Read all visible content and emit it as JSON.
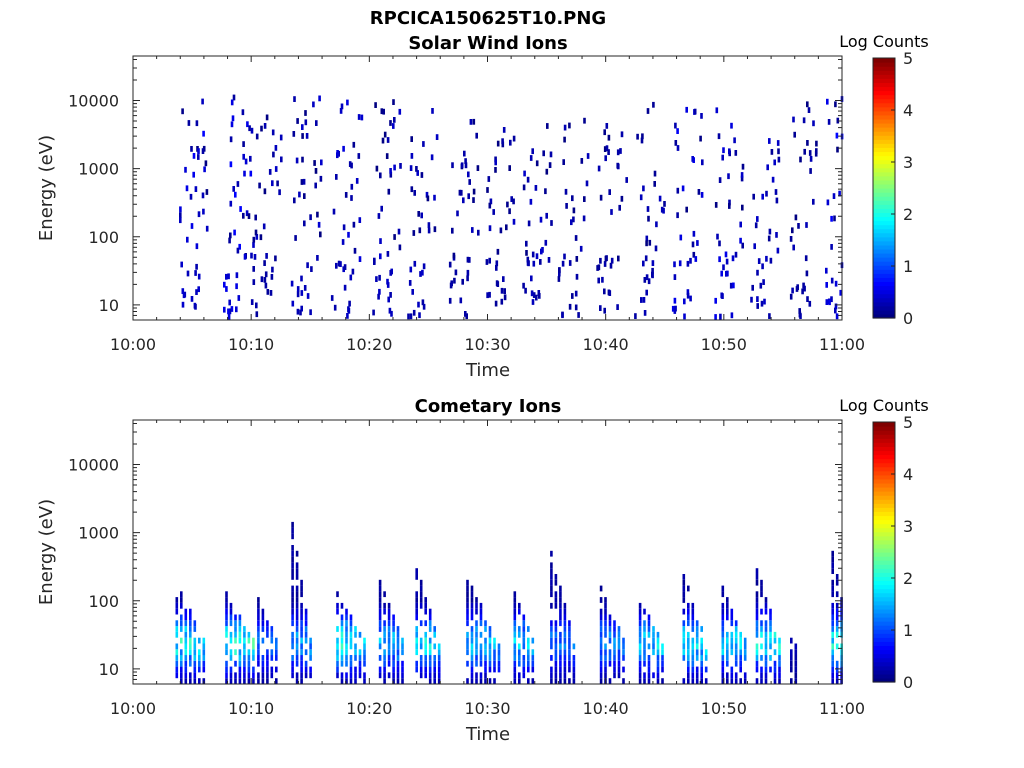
{
  "figure": {
    "title": "RPCICA150625T10.PNG",
    "background": "#ffffff"
  },
  "chart_data": [
    {
      "type": "heatmap",
      "title": "Solar Wind Ions",
      "xlabel": "Time",
      "ylabel": "Energy (eV)",
      "x_range": [
        "10:00",
        "11:00"
      ],
      "x_ticks": [
        "10:00",
        "10:10",
        "10:20",
        "10:30",
        "10:40",
        "10:50",
        "11:00"
      ],
      "y_scale": "log",
      "y_range": [
        6,
        45000
      ],
      "y_ticks": [
        "10",
        "100",
        "1000",
        "10000"
      ],
      "y_tick_values": [
        10,
        100,
        1000,
        10000
      ],
      "colorbar": {
        "label": "Log Counts",
        "range": [
          0,
          5
        ],
        "ticks": [
          "0",
          "1",
          "2",
          "3",
          "4",
          "5"
        ],
        "colormap": "jet"
      },
      "bursts": [
        {
          "t": 4.6,
          "low": 0.35,
          "high": 1.05,
          "tail_top": 9000,
          "n": 30
        },
        {
          "t": 8.3,
          "low": 0.45,
          "high": 1.1,
          "tail_top": 11000,
          "n": 32
        },
        {
          "t": 10.8,
          "low": 0.2,
          "high": 0.6,
          "tail_top": 8000,
          "n": 26
        },
        {
          "t": 14.2,
          "low": 0.3,
          "high": 0.7,
          "tail_top": 12000,
          "n": 30
        },
        {
          "t": 17.6,
          "low": 0.3,
          "high": 0.8,
          "tail_top": 9000,
          "n": 26
        },
        {
          "t": 21.0,
          "low": 0.3,
          "high": 0.7,
          "tail_top": 16000,
          "n": 28
        },
        {
          "t": 24.1,
          "low": 0.3,
          "high": 0.6,
          "tail_top": 8000,
          "n": 22
        },
        {
          "t": 27.5,
          "low": 0.2,
          "high": 0.5,
          "tail_top": 6000,
          "n": 24
        },
        {
          "t": 30.6,
          "low": 0.2,
          "high": 0.6,
          "tail_top": 4000,
          "n": 24
        },
        {
          "t": 33.7,
          "low": 0.25,
          "high": 0.65,
          "tail_top": 5000,
          "n": 26
        },
        {
          "t": 36.8,
          "low": 0.2,
          "high": 0.5,
          "tail_top": 5000,
          "n": 20
        },
        {
          "t": 40.0,
          "low": 0.2,
          "high": 0.5,
          "tail_top": 5000,
          "n": 22
        },
        {
          "t": 43.3,
          "low": 0.25,
          "high": 0.55,
          "tail_top": 10000,
          "n": 20
        },
        {
          "t": 46.4,
          "low": 0.45,
          "high": 1.0,
          "tail_top": 8000,
          "n": 24
        },
        {
          "t": 49.9,
          "low": 0.45,
          "high": 0.9,
          "tail_top": 7000,
          "n": 26
        },
        {
          "t": 53.1,
          "low": 0.3,
          "high": 0.7,
          "tail_top": 3000,
          "n": 20
        },
        {
          "t": 56.3,
          "low": 0.2,
          "high": 0.5,
          "tail_top": 11000,
          "n": 22
        },
        {
          "t": 59.3,
          "low": 0.45,
          "high": 1.1,
          "tail_top": 10000,
          "n": 30
        }
      ]
    },
    {
      "type": "heatmap",
      "title": "Cometary Ions",
      "xlabel": "Time",
      "ylabel": "Energy (eV)",
      "x_range": [
        "10:00",
        "11:00"
      ],
      "x_ticks": [
        "10:00",
        "10:10",
        "10:20",
        "10:30",
        "10:40",
        "10:50",
        "11:00"
      ],
      "y_scale": "log",
      "y_range": [
        6,
        45000
      ],
      "y_ticks": [
        "10",
        "100",
        "1000",
        "10000"
      ],
      "y_tick_values": [
        10,
        100,
        1000,
        10000
      ],
      "colorbar": {
        "label": "Log Counts",
        "range": [
          0,
          5
        ],
        "ticks": [
          "0",
          "1",
          "2",
          "3",
          "4",
          "5"
        ],
        "colormap": "jet"
      },
      "bursts": [
        {
          "t": 3.6,
          "top": 160,
          "peak": 1.9,
          "width": 2.6
        },
        {
          "t": 7.8,
          "top": 120,
          "peak": 2.0,
          "width": 2.6
        },
        {
          "t": 10.5,
          "top": 100,
          "peak": 1.1,
          "width": 1.8
        },
        {
          "t": 13.4,
          "top": 1300,
          "peak": 1.4,
          "width": 1.8
        },
        {
          "t": 17.2,
          "top": 120,
          "peak": 1.9,
          "width": 2.6
        },
        {
          "t": 20.8,
          "top": 200,
          "peak": 1.5,
          "width": 2.4
        },
        {
          "t": 23.9,
          "top": 300,
          "peak": 1.8,
          "width": 2.4
        },
        {
          "t": 28.2,
          "top": 200,
          "peak": 1.6,
          "width": 3.0
        },
        {
          "t": 32.2,
          "top": 120,
          "peak": 1.6,
          "width": 2.0
        },
        {
          "t": 35.3,
          "top": 500,
          "peak": 1.2,
          "width": 2.4
        },
        {
          "t": 39.5,
          "top": 150,
          "peak": 1.3,
          "width": 2.2
        },
        {
          "t": 42.8,
          "top": 90,
          "peak": 1.7,
          "width": 2.4
        },
        {
          "t": 46.5,
          "top": 220,
          "peak": 1.8,
          "width": 2.2
        },
        {
          "t": 49.8,
          "top": 150,
          "peak": 1.7,
          "width": 2.4
        },
        {
          "t": 52.7,
          "top": 300,
          "peak": 1.9,
          "width": 2.4
        },
        {
          "t": 55.6,
          "top": 25,
          "peak": 0.3,
          "width": 0.8
        },
        {
          "t": 59.1,
          "top": 450,
          "peak": 2.0,
          "width": 2.0
        }
      ]
    }
  ]
}
